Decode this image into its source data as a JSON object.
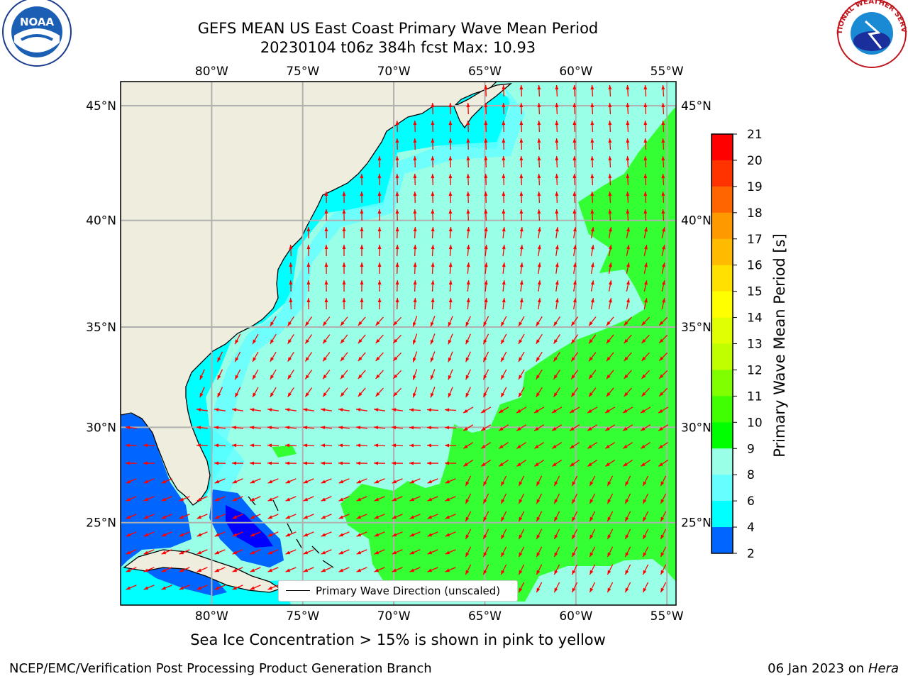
{
  "title": {
    "line1": "GEFS MEAN US East Coast Primary Wave Mean Period",
    "line2": "20230104 t06z 384h fcst   Max: 10.93"
  },
  "logos": {
    "left": {
      "name": "noaa-logo",
      "text": "NOAA",
      "ring_text": "NATIONAL OCEANIC AND ATMOSPHERIC ADMINISTRATION · U.S. DEPARTMENT OF COMMERCE"
    },
    "right": {
      "name": "national-weather-service-logo",
      "ring_text": "NATIONAL WEATHER SERVICE"
    }
  },
  "map": {
    "lon_ticks": [
      "80°W",
      "75°W",
      "70°W",
      "65°W",
      "60°W",
      "55°W"
    ],
    "lat_ticks": [
      "45°N",
      "40°N",
      "35°N",
      "30°N",
      "25°N"
    ],
    "lon_values": [
      -80,
      -75,
      -70,
      -65,
      -60,
      -55
    ],
    "lat_values": [
      45,
      40,
      35,
      30,
      25
    ],
    "extent": {
      "lon": [
        -85,
        -54.5
      ],
      "lat": [
        20.5,
        46
      ]
    },
    "land_color": "#efedde",
    "grid_color": "#b0b0b0",
    "arrow_color": "#ff0000",
    "legend": "Primary Wave Direction (unscaled)"
  },
  "colorbar": {
    "label": "Primary Wave Mean Period [s]",
    "ticks": [
      "21",
      "20",
      "19",
      "18",
      "17",
      "16",
      "15",
      "14",
      "13",
      "12",
      "11",
      "10",
      "9",
      "8",
      "6",
      "4",
      "2"
    ],
    "colors": [
      "#ff0000",
      "#ff3300",
      "#ff6600",
      "#ff9900",
      "#ffbb00",
      "#ffe000",
      "#ffff00",
      "#e0ff00",
      "#c0ff00",
      "#80ff00",
      "#40ff00",
      "#00ff00",
      "#99ffe6",
      "#66ffff",
      "#00ffff",
      "#0066ff",
      "#0000ff"
    ]
  },
  "period_colors": {
    "le6": "#0066ff",
    "le4": "#0000ff",
    "6_8": "#00ffff",
    "8_9": "#66ffff",
    "9_10": "#99ffe6",
    "10_11": "#33ff33"
  },
  "subtitle": "Sea Ice Concentration > 15% is shown in pink to yellow",
  "footer": {
    "left": "NCEP/EMC/Verification Post Processing Product Generation Branch",
    "date": "06 Jan 2023 on ",
    "machine": "Hera"
  }
}
